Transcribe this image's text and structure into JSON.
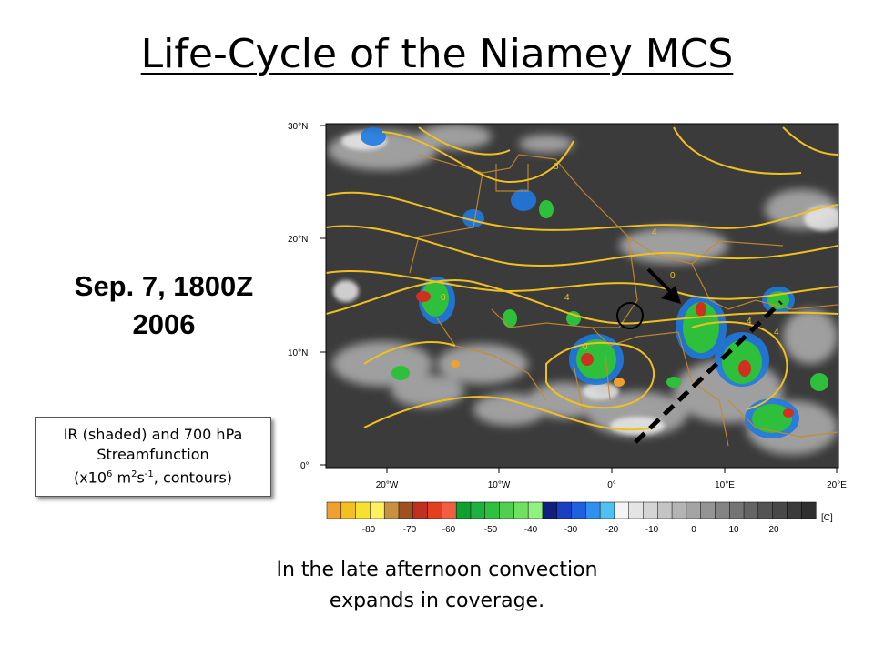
{
  "title": "Life-Cycle of the Niamey MCS",
  "date_line1": "Sep. 7, 1800Z",
  "date_line2": "2006",
  "legend_box": {
    "line1": "IR (shaded) and 700 hPa",
    "line2": "Streamfunction",
    "line3_a": "(x10",
    "line3_sup1": "6",
    "line3_b": " m",
    "line3_sup2": "2",
    "line3_c": "s",
    "line3_sup3": "-1",
    "line3_d": ", contours)"
  },
  "caption_line1": "In the late afternoon convection",
  "caption_line2": "expands in coverage.",
  "map": {
    "lat_labels": [
      "30°N",
      "20°N",
      "10°N",
      "0°"
    ],
    "lon_labels": [
      "20°W",
      "10°W",
      "0°",
      "10°E",
      "20°E"
    ],
    "contour_labels": [
      "8",
      "4",
      "0",
      "4",
      "4",
      "0",
      "0",
      "4"
    ],
    "colors": {
      "contour": "#f0c020",
      "border": "#c88a2a",
      "background": "#3b3b3b"
    }
  },
  "colorbar": {
    "ticks": [
      "-80",
      "-70",
      "-60",
      "-50",
      "-40",
      "-30",
      "-20",
      "-10",
      "0",
      "10",
      "20"
    ],
    "unit": "[C]",
    "colors": [
      "#f0a030",
      "#f4c020",
      "#f6e030",
      "#fff060",
      "#c89040",
      "#a05020",
      "#c03020",
      "#e04020",
      "#f06040",
      "#10a030",
      "#20b040",
      "#30c040",
      "#50d050",
      "#70e060",
      "#90f080",
      "#102080",
      "#1840c0",
      "#2060e0",
      "#3090f0",
      "#50c0f0",
      "#f4f4f4",
      "#e4e4e4",
      "#d4d4d4",
      "#c4c4c4",
      "#b4b4b4",
      "#a4a4a4",
      "#949494",
      "#848484",
      "#747474",
      "#646464",
      "#545454",
      "#484848",
      "#3c3c3c",
      "#303030"
    ]
  }
}
